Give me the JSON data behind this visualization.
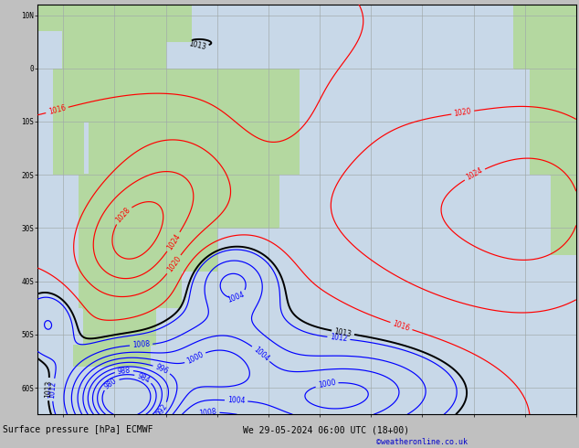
{
  "title": "Surface pressure [hPa] ECMWF",
  "subtitle": "We 29-05-2024 06:00 UTC (18+00)",
  "credit": "©weatheronline.co.uk",
  "figsize": [
    6.34,
    4.9
  ],
  "dpi": 100,
  "sea_color": "#c8d8e8",
  "land_color": "#b4d8a0",
  "grid_color": "#a0a8a8",
  "bar_color": "#c0c0c0",
  "credit_color": "#0000cc",
  "lon_min": -85,
  "lon_max": 20,
  "lat_min": -65,
  "lat_max": 12
}
